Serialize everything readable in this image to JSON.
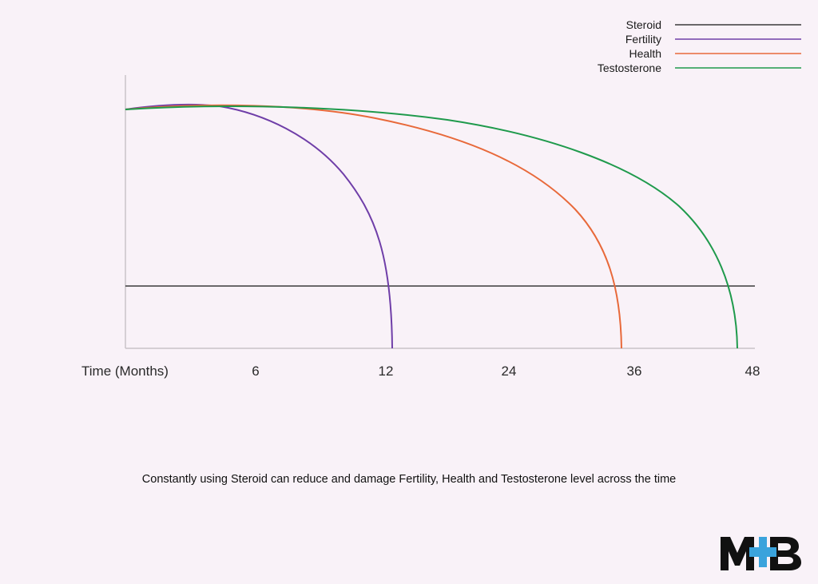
{
  "chart_data": {
    "type": "line",
    "xlabel": "Time (Months)",
    "x_ticks": [
      6,
      12,
      24,
      36,
      48
    ],
    "legend_position": "top-right",
    "series": [
      {
        "name": "Steroid",
        "color": "#3a3a3a"
      },
      {
        "name": "Fertility",
        "color": "#6f3ea8"
      },
      {
        "name": "Health",
        "color": "#e8693a"
      },
      {
        "name": "Testosterone",
        "color": "#1f9a4c"
      }
    ]
  },
  "caption": "Constantly using Steroid can reduce and damage Fertility, Health and Testosterone level across the time",
  "logo": {
    "text": "M+B",
    "cross_color": "#3aa3dc"
  }
}
